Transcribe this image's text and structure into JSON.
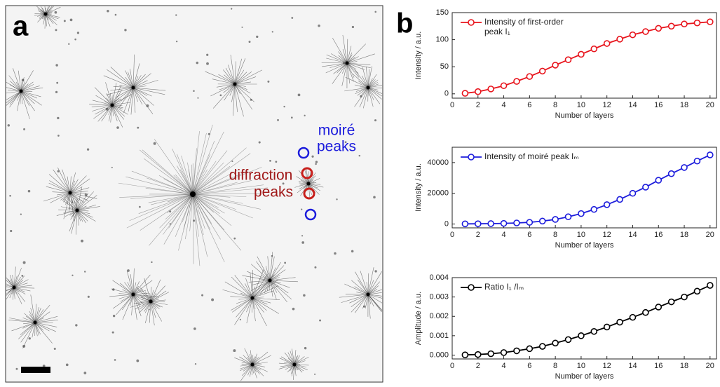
{
  "figure": {
    "panel_a": "a",
    "panel_b": "b",
    "moire_annotation": [
      "moiré",
      "peaks"
    ],
    "diffraction_annotation": [
      "diffraction",
      "peaks"
    ]
  },
  "chart_data": [
    {
      "type": "line",
      "xlabel": "Number of layers",
      "ylabel": "Intensity / a.u.",
      "x": [
        1,
        2,
        3,
        4,
        5,
        6,
        7,
        8,
        9,
        10,
        11,
        12,
        13,
        14,
        15,
        16,
        17,
        18,
        19,
        20
      ],
      "series": [
        {
          "name": "Intensity of first-order peak I₁",
          "color": "#e8141c",
          "values": [
            1,
            4,
            9,
            15,
            23,
            32,
            42,
            53,
            63,
            73,
            83,
            93,
            101,
            109,
            115,
            121,
            125,
            129,
            131,
            133
          ]
        }
      ],
      "xlim": [
        0,
        20.5
      ],
      "ylim": [
        -8,
        150
      ],
      "xticks": [
        0,
        2,
        4,
        6,
        8,
        10,
        12,
        14,
        16,
        18,
        20
      ],
      "yticks": [
        0,
        50,
        100,
        150
      ],
      "legend": "upper left"
    },
    {
      "type": "line",
      "xlabel": "Number of layers",
      "ylabel": "Intensity / a.u.",
      "x": [
        1,
        2,
        3,
        4,
        5,
        6,
        7,
        8,
        9,
        10,
        11,
        12,
        13,
        14,
        15,
        16,
        17,
        18,
        19,
        20
      ],
      "series": [
        {
          "name": "Intensity of moiré peak Iₘ",
          "color": "#1c1cdc",
          "values": [
            100,
            150,
            250,
            400,
            700,
            1100,
            1900,
            3000,
            4700,
            6800,
            9500,
            12600,
            16000,
            20000,
            24000,
            28500,
            32800,
            36800,
            41000,
            45000
          ]
        }
      ],
      "xlim": [
        0,
        20.5
      ],
      "ylim": [
        -2500,
        50000
      ],
      "xticks": [
        0,
        2,
        4,
        6,
        8,
        10,
        12,
        14,
        16,
        18,
        20
      ],
      "yticks": [
        0,
        20000,
        40000
      ],
      "legend": "upper left"
    },
    {
      "type": "line",
      "xlabel": "Number of layers",
      "ylabel": "Amplitude / a.u.",
      "x": [
        1,
        2,
        3,
        4,
        5,
        6,
        7,
        8,
        9,
        10,
        11,
        12,
        13,
        14,
        15,
        16,
        17,
        18,
        19,
        20
      ],
      "series": [
        {
          "name": "Ratio I₁ /Iₘ",
          "color": "#000000",
          "values": [
            1e-05,
            3e-05,
            7e-05,
            0.00013,
            0.00022,
            0.00033,
            0.00045,
            0.00062,
            0.0008,
            0.001,
            0.00122,
            0.00145,
            0.0017,
            0.00195,
            0.0022,
            0.00248,
            0.00275,
            0.003,
            0.0033,
            0.0036
          ]
        }
      ],
      "xlim": [
        0,
        20.5
      ],
      "ylim": [
        -0.0002,
        0.004
      ],
      "xticks": [
        0,
        2,
        4,
        6,
        8,
        10,
        12,
        14,
        16,
        18,
        20
      ],
      "yticks": [
        {
          "value": 0,
          "label": "0.000"
        },
        {
          "value": 0.001,
          "label": "0.001"
        },
        {
          "value": 0.002,
          "label": "0.002"
        },
        {
          "value": 0.003,
          "label": "0.003"
        },
        {
          "value": 0.004,
          "label": "0.004"
        }
      ],
      "legend": "upper left"
    }
  ]
}
